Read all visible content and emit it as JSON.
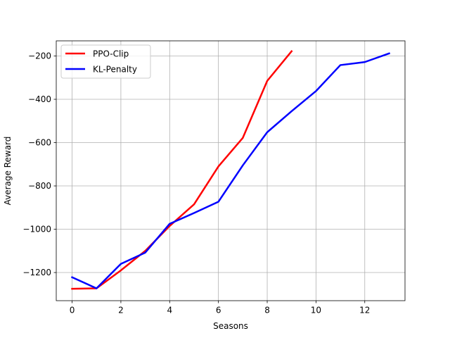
{
  "chart_data": {
    "type": "line",
    "title": "",
    "xlabel": "Seasons",
    "ylabel": "Average Reward",
    "xlim": [
      -0.65,
      13.65
    ],
    "ylim": [
      -1330,
      -130
    ],
    "xticks": [
      0,
      2,
      4,
      6,
      8,
      10,
      12
    ],
    "yticks": [
      -1200,
      -1000,
      -800,
      -600,
      -400,
      -200
    ],
    "xtick_labels": [
      "0",
      "2",
      "4",
      "6",
      "8",
      "10",
      "12"
    ],
    "ytick_labels": [
      "−1200",
      "−1000",
      "−800",
      "−600",
      "−400",
      "−200"
    ],
    "grid": true,
    "legend_position": "upper-left",
    "series": [
      {
        "name": "PPO-Clip",
        "color": "#ff0000",
        "x": [
          0,
          1,
          2,
          3,
          4,
          5,
          6,
          7,
          8,
          9
        ],
        "y": [
          -1275,
          -1273,
          -1190,
          -1100,
          -985,
          -885,
          -710,
          -578,
          -315,
          -178
        ]
      },
      {
        "name": "KL-Penalty",
        "color": "#0000ff",
        "x": [
          0,
          1,
          2,
          3,
          4,
          5,
          6,
          7,
          8,
          9,
          10,
          11,
          12,
          13
        ],
        "y": [
          -1222,
          -1273,
          -1160,
          -1108,
          -975,
          -925,
          -873,
          -705,
          -552,
          -455,
          -362,
          -242,
          -228,
          -188
        ]
      }
    ]
  }
}
